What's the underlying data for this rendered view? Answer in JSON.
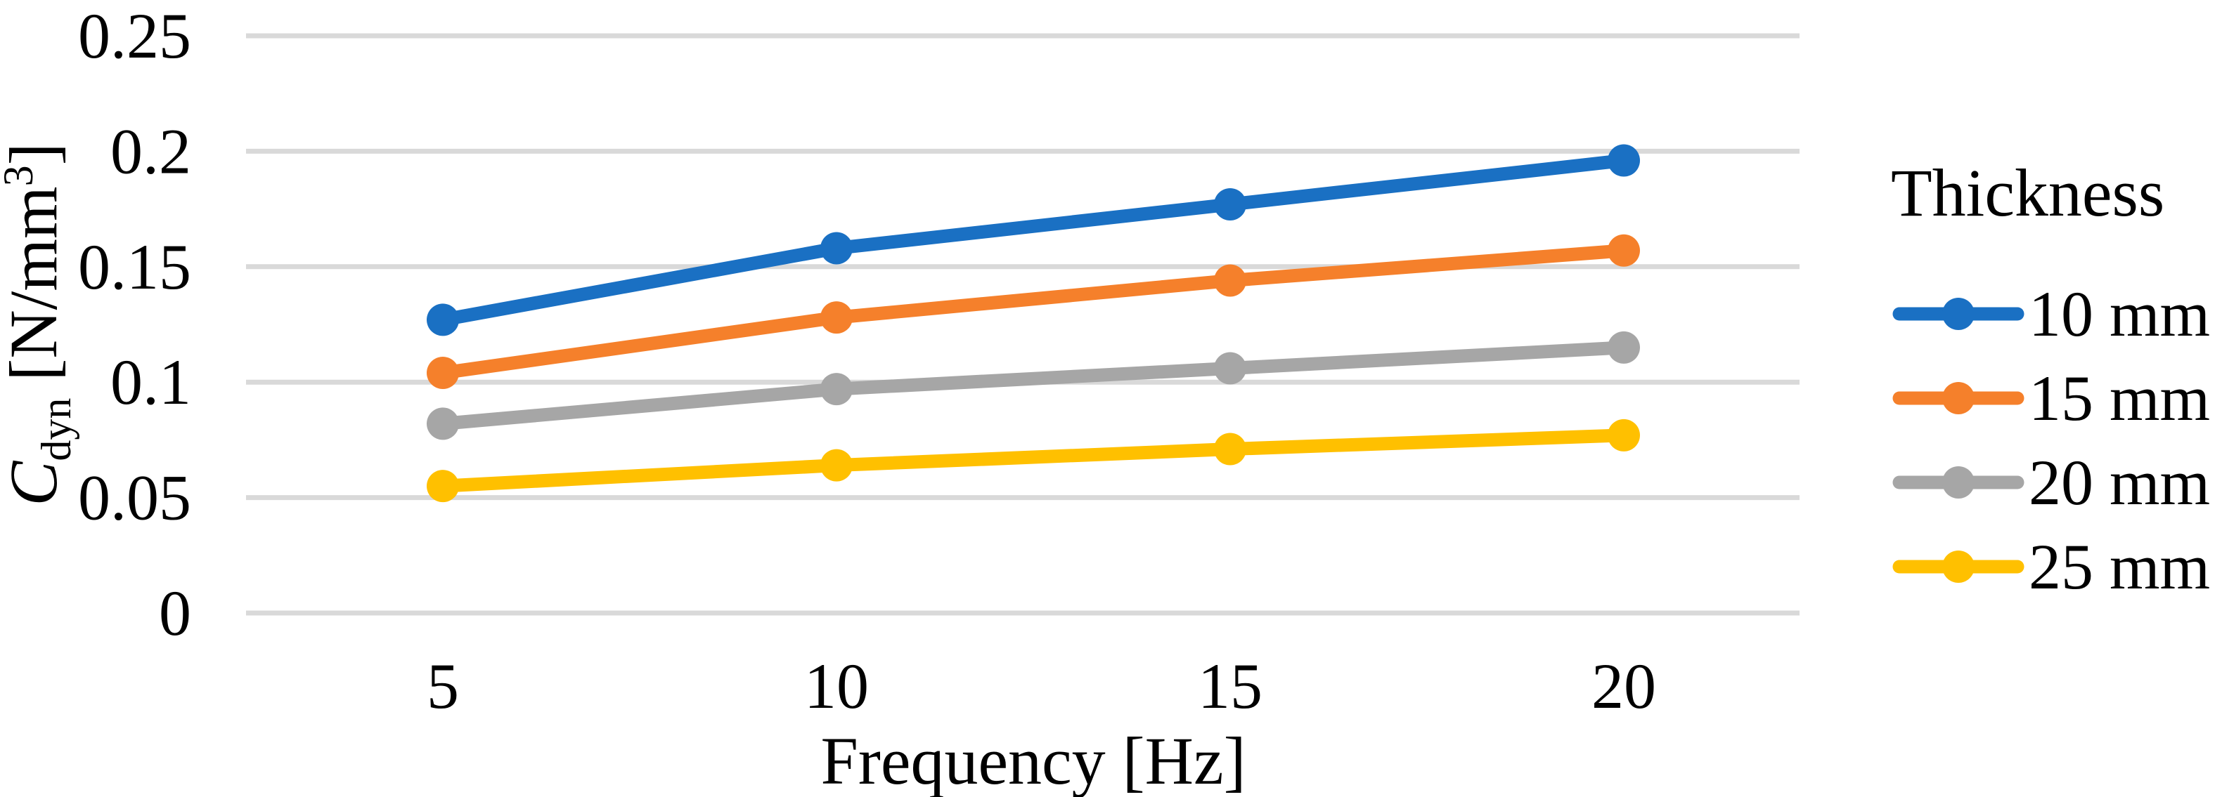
{
  "chart_data": {
    "type": "line",
    "title": "",
    "xlabel": "Frequency [Hz]",
    "ylabel": "Cdyn [N/mm³]",
    "ylabel_parts": {
      "symbol": "C",
      "subscript": "dyn",
      "unit_open": " [N/mm",
      "unit_superscript": "3",
      "unit_close": "]"
    },
    "x": [
      5,
      10,
      15,
      20
    ],
    "xtick_labels": [
      "5",
      "10",
      "15",
      "20"
    ],
    "ylim": [
      0,
      0.25
    ],
    "yticks": [
      0,
      0.05,
      0.1,
      0.15,
      0.2,
      0.25
    ],
    "ytick_labels": [
      "0",
      "0.05",
      "0.1",
      "0.15",
      "0.2",
      "0.25"
    ],
    "grid": true,
    "legend": {
      "title": "Thickness",
      "position": "right"
    },
    "series": [
      {
        "name": "10 mm",
        "color": "#1A70C3",
        "values": [
          0.127,
          0.158,
          0.177,
          0.196
        ]
      },
      {
        "name": "15 mm",
        "color": "#F5802B",
        "values": [
          0.104,
          0.128,
          0.144,
          0.157
        ]
      },
      {
        "name": "20 mm",
        "color": "#A6A6A6",
        "values": [
          0.082,
          0.097,
          0.106,
          0.115
        ]
      },
      {
        "name": "25 mm",
        "color": "#FFC000",
        "values": [
          0.055,
          0.064,
          0.071,
          0.077
        ]
      }
    ],
    "colors": {
      "gridline": "#D9D9D9",
      "text": "#000000",
      "background": "#FFFFFF"
    }
  }
}
